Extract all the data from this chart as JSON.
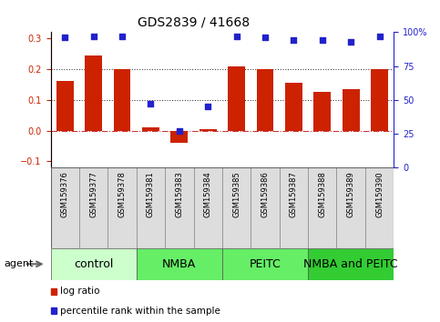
{
  "title": "GDS2839 / 41668",
  "samples": [
    "GSM159376",
    "GSM159377",
    "GSM159378",
    "GSM159381",
    "GSM159383",
    "GSM159384",
    "GSM159385",
    "GSM159386",
    "GSM159387",
    "GSM159388",
    "GSM159389",
    "GSM159390"
  ],
  "log_ratio": [
    0.16,
    0.245,
    0.2,
    0.01,
    -0.04,
    0.005,
    0.21,
    0.2,
    0.155,
    0.125,
    0.135,
    0.2
  ],
  "percentile_pct": [
    96,
    97,
    97,
    47,
    27,
    45,
    97,
    96,
    94,
    94,
    93,
    97
  ],
  "groups": [
    {
      "label": "control",
      "start": 0,
      "end": 3,
      "color": "#ccffcc"
    },
    {
      "label": "NMBA",
      "start": 3,
      "end": 6,
      "color": "#66ee66"
    },
    {
      "label": "PEITC",
      "start": 6,
      "end": 9,
      "color": "#66ee66"
    },
    {
      "label": "NMBA and PEITC",
      "start": 9,
      "end": 12,
      "color": "#33cc33"
    }
  ],
  "bar_color": "#cc2200",
  "dot_color": "#2222cc",
  "ylim_left": [
    -0.12,
    0.32
  ],
  "ylim_right": [
    0,
    100
  ],
  "yticks_left": [
    -0.1,
    0.0,
    0.1,
    0.2,
    0.3
  ],
  "yticks_right": [
    0,
    25,
    50,
    75,
    100
  ],
  "hlines": [
    0.0,
    0.1,
    0.2
  ],
  "hline_styles": [
    "dashdot",
    "dotted",
    "dotted"
  ],
  "hline_colors": [
    "#cc3333",
    "#333333",
    "#333333"
  ],
  "title_fontsize": 10,
  "tick_fontsize": 7,
  "sample_fontsize": 6,
  "group_fontsize": 9,
  "legend_items": [
    {
      "label": "log ratio",
      "color": "#cc2200"
    },
    {
      "label": "percentile rank within the sample",
      "color": "#2222cc"
    }
  ],
  "agent_label": "agent",
  "bar_width": 0.6
}
